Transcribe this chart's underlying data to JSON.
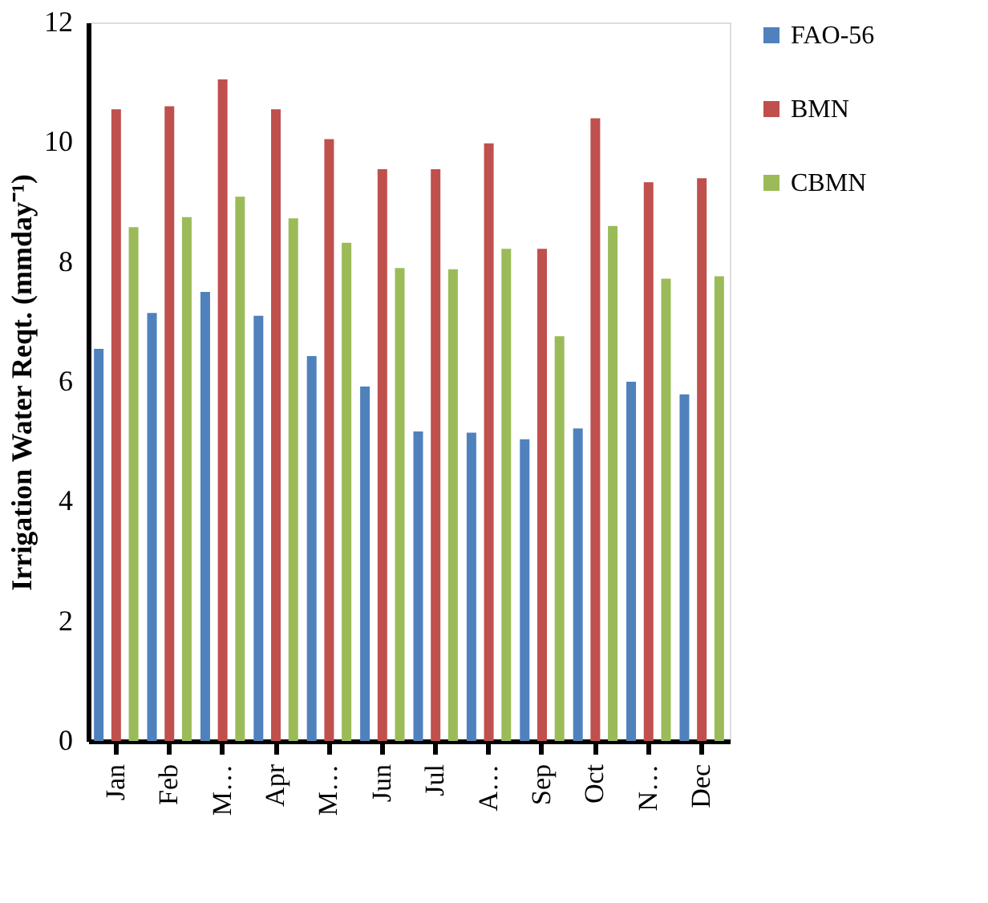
{
  "chart_data": {
    "type": "bar",
    "ylabel": "Irrigation Water Reqt. (mmday⁻¹)",
    "categories": [
      "Jan",
      "Feb",
      "M…",
      "Apr",
      "M…",
      "Jun",
      "Jul",
      "A…",
      "Sep",
      "Oct",
      "N…",
      "Dec"
    ],
    "series": [
      {
        "name": "FAO-56",
        "color": "#4f81bd",
        "values": [
          6.55,
          7.15,
          7.5,
          7.1,
          6.43,
          5.92,
          5.17,
          5.15,
          5.04,
          5.22,
          6.0,
          5.79
        ]
      },
      {
        "name": "BMN",
        "color": "#c0504d",
        "values": [
          10.55,
          10.6,
          11.05,
          10.55,
          10.05,
          9.55,
          9.55,
          9.98,
          8.22,
          10.4,
          9.33,
          9.4
        ]
      },
      {
        "name": "CBMN",
        "color": "#9bbb59",
        "values": [
          8.58,
          8.75,
          9.09,
          8.73,
          8.32,
          7.9,
          7.88,
          8.22,
          6.76,
          8.6,
          7.72,
          7.76
        ]
      }
    ],
    "ylim": [
      0,
      12
    ],
    "yticks": [
      0,
      2,
      4,
      6,
      8,
      10,
      12
    ],
    "grid": false,
    "legend": "right"
  }
}
